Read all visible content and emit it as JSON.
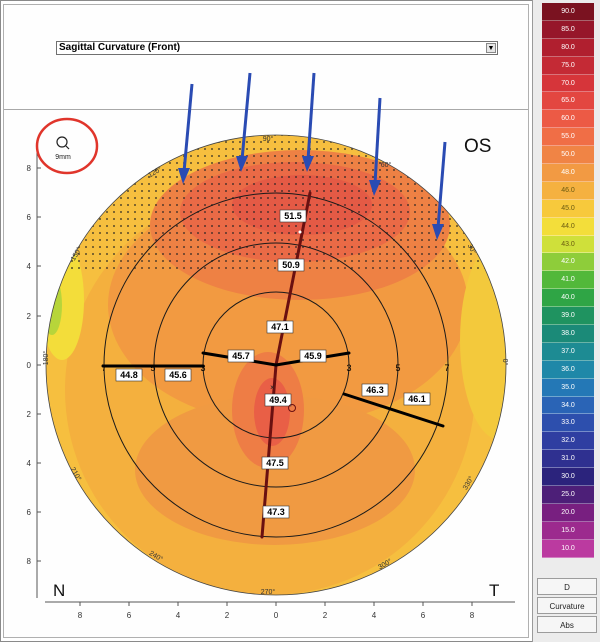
{
  "map_type": {
    "selected": "Sagittal Curvature (Front)"
  },
  "map": {
    "eye_label": "OS",
    "zoom_label": "9mm",
    "nasal_label": "N",
    "temporal_label": "T",
    "degree_labels": {
      "d90": "90°",
      "d60": "60°",
      "d30": "30°",
      "d0": "0°",
      "d330": "330°",
      "d300": "300°",
      "d270": "270°",
      "d240": "240°",
      "d210": "210°",
      "d180": "180°",
      "d150": "150°",
      "d120": "120°"
    },
    "ring_labels": {
      "r3": "3",
      "r5": "5",
      "r7": "7",
      "r8l": "8",
      "r3l": "3",
      "r5l": "5",
      "r7l": "7"
    },
    "y_axis_ticks": [
      "8",
      "6",
      "4",
      "2",
      "0",
      "2",
      "4",
      "6",
      "8"
    ],
    "x_axis_ticks": [
      "8",
      "6",
      "4",
      "2",
      "0",
      "2",
      "4",
      "6",
      "8"
    ],
    "readings": {
      "v_top": "51.5",
      "v_upper": "50.9",
      "v_center": "47.1",
      "h_left_outer": "44.8",
      "h_left_mid": "45.6",
      "h_left_inner": "45.7",
      "h_right_inner": "45.9",
      "h_right_mid": "46.3",
      "h_right_outer": "46.1",
      "v_below": "49.4",
      "v_lower": "47.5",
      "v_bottom": "47.3"
    },
    "colors": {
      "accent_arrow": "#2a4bb3",
      "highlight_circle": "#e0352b"
    }
  },
  "scale": {
    "values": [
      "90.0",
      "85.0",
      "80.0",
      "75.0",
      "70.0",
      "65.0",
      "60.0",
      "55.0",
      "50.0",
      "48.0",
      "46.0",
      "45.0",
      "44.0",
      "43.0",
      "42.0",
      "41.0",
      "40.0",
      "39.0",
      "38.0",
      "37.0",
      "36.0",
      "35.0",
      "34.0",
      "33.0",
      "32.0",
      "31.0",
      "30.0",
      "25.0",
      "20.0",
      "15.0",
      "10.0"
    ],
    "colors": [
      "#7a1220",
      "#96162a",
      "#b01f2f",
      "#c42a35",
      "#d6353a",
      "#e34640",
      "#ec5a45",
      "#f06e46",
      "#f08445",
      "#f29a43",
      "#f5b140",
      "#f7c93c",
      "#f3de3a",
      "#cfe03a",
      "#8ecd3a",
      "#52b83a",
      "#2fa545",
      "#1f9360",
      "#1b8a78",
      "#1d8b93",
      "#1f88a8",
      "#2478b6",
      "#2a64b6",
      "#2d4fad",
      "#2f3ea1",
      "#2f3090",
      "#2b237c",
      "#4d1f78",
      "#781f80",
      "#9c2a8e",
      "#bb3aa0"
    ],
    "unit_d": "D",
    "unit_curvature": "Curvature",
    "unit_abs": "Abs"
  }
}
